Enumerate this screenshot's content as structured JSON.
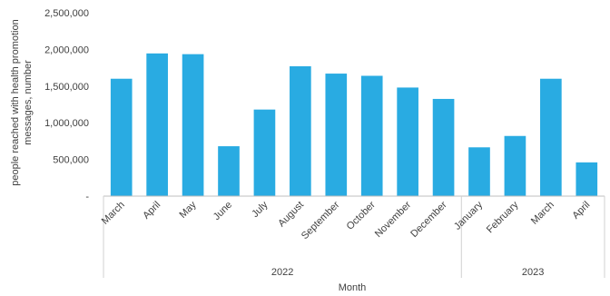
{
  "chart_data": {
    "type": "bar",
    "categories": [
      "March",
      "April",
      "May",
      "June",
      "July",
      "August",
      "September",
      "October",
      "November",
      "December",
      "January",
      "February",
      "March",
      "April"
    ],
    "groups": [
      {
        "label": "2022",
        "count": 10
      },
      {
        "label": "2023",
        "count": 4
      }
    ],
    "values": [
      1600000,
      1945000,
      1935000,
      680000,
      1180000,
      1770000,
      1670000,
      1640000,
      1480000,
      1325000,
      665000,
      820000,
      1600000,
      460000
    ],
    "yticks": [
      0,
      500000,
      1000000,
      1500000,
      2000000,
      2500000
    ],
    "ytick_labels": [
      "-",
      "500,000",
      "1,000,000",
      "1,500,000",
      "2,000,000",
      "2,500,000"
    ],
    "ylim": [
      0,
      2500000
    ],
    "xlabel": "Month",
    "ylabel_lines": [
      "people reached with health promotion",
      "messages, number"
    ],
    "bar_color": "#29abe2",
    "grid": false,
    "legend": "none"
  }
}
